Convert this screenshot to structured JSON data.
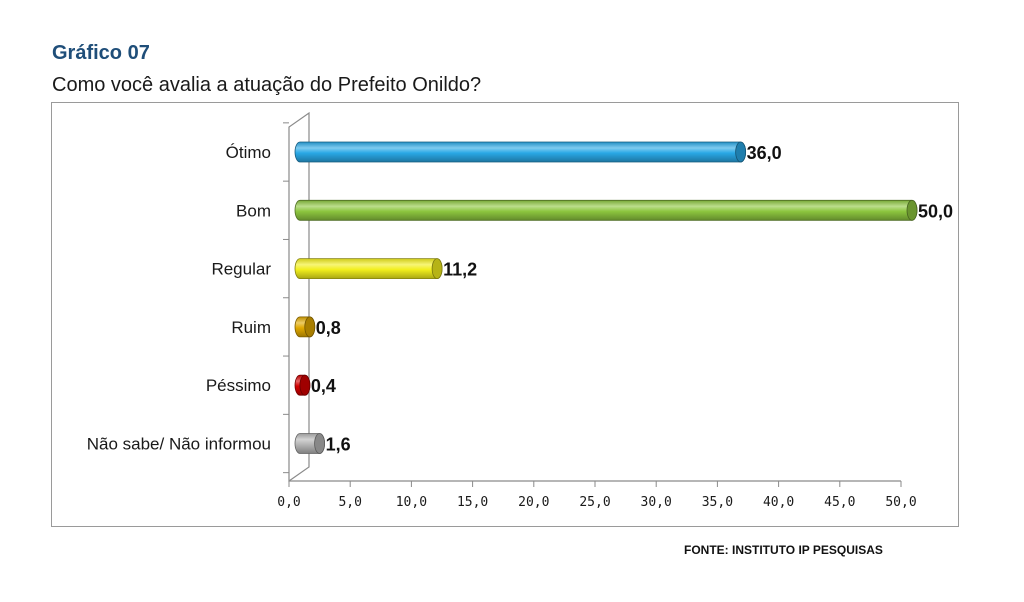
{
  "heading": "Gráfico 07",
  "subtitle": "Como você avalia a atuação do Prefeito Onildo?",
  "source": "FONTE: INSTITUTO IP PESQUISAS",
  "chart_data": {
    "type": "bar",
    "orientation": "horizontal",
    "categories": [
      "Ótimo",
      "Bom",
      "Regular",
      "Ruim",
      "Péssimo",
      "Não sabe/ Não informou"
    ],
    "values": [
      36.0,
      50.0,
      11.2,
      0.8,
      0.4,
      1.6
    ],
    "value_labels": [
      "36,0",
      "50,0",
      "11,2",
      "0,8",
      "0,4",
      "1,6"
    ],
    "colors": [
      "#29a8e6",
      "#8dc63f",
      "#f2ef1d",
      "#e0a800",
      "#d40000",
      "#b5b5b5"
    ],
    "xlim": [
      0,
      50
    ],
    "xticks": [
      0,
      5,
      10,
      15,
      20,
      25,
      30,
      35,
      40,
      45,
      50
    ],
    "xtick_labels": [
      "0,0",
      "5,0",
      "10,0",
      "15,0",
      "20,0",
      "25,0",
      "30,0",
      "35,0",
      "40,0",
      "45,0",
      "50,0"
    ],
    "grid": false,
    "legend": "none"
  }
}
